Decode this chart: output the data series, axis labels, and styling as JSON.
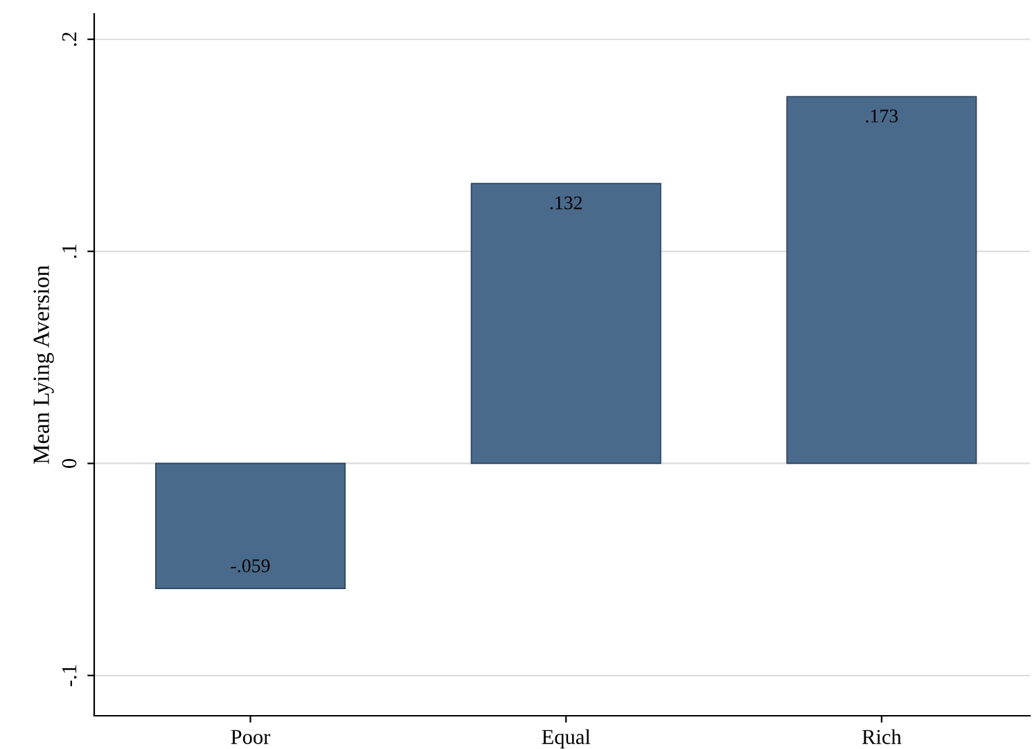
{
  "chart_data": {
    "type": "bar",
    "ylabel": "Mean Lying Aversion",
    "categories": [
      "Poor",
      "Equal",
      "Rich"
    ],
    "values": [
      -0.059,
      0.132,
      0.173
    ],
    "value_labels": [
      "-.059",
      ".132",
      ".173"
    ],
    "color": "#4a6a8b",
    "ylim": [
      -0.119,
      0.212
    ],
    "yticks": [
      {
        "value": -0.1,
        "label": "-.1"
      },
      0,
      {
        "value": 0.1,
        "label": ".1"
      },
      {
        "value": 0.2,
        "label": ".2"
      }
    ],
    "grid": "y",
    "legend": false
  }
}
